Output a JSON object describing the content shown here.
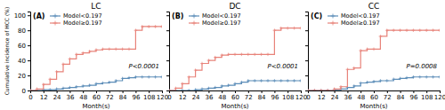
{
  "chart_data": [
    {
      "type": "step",
      "title": "LC",
      "annotations": [
        "(A)",
        "P<0.0001"
      ],
      "xlabel": "Month(s)",
      "ylabel": "Cumulative incidence of HCC (%)",
      "x": [
        0,
        6,
        12,
        18,
        24,
        30,
        36,
        42,
        48,
        54,
        60,
        66,
        72,
        78,
        84,
        90,
        96,
        102,
        108,
        114,
        120
      ],
      "series": [
        {
          "name": "Model<0.197",
          "color": "#5B8DB8",
          "marker": "plus",
          "values": [
            0,
            0,
            1,
            1,
            2,
            3,
            4,
            5,
            6,
            7,
            9,
            10,
            11,
            13,
            16,
            17,
            18,
            18,
            18,
            18,
            18
          ]
        },
        {
          "name": "Model≥0.197",
          "color": "#E8837A",
          "marker": "plus",
          "values": [
            0,
            2,
            8,
            15,
            25,
            35,
            42,
            48,
            50,
            52,
            54,
            55,
            55,
            55,
            55,
            55,
            80,
            85,
            85,
            85,
            85
          ]
        }
      ],
      "xlim": [
        0,
        120
      ],
      "ylim": [
        0,
        105
      ],
      "xticks": [
        0,
        12,
        24,
        36,
        48,
        60,
        72,
        84,
        96,
        108,
        120
      ],
      "yticks": [
        0,
        20,
        40,
        60,
        80,
        100
      ],
      "legend": "upper left"
    },
    {
      "type": "step",
      "title": "DC",
      "annotations": [
        "(B)",
        "P<0.0001"
      ],
      "xlabel": "Month(s)",
      "x": [
        0,
        6,
        12,
        18,
        24,
        30,
        36,
        42,
        48,
        54,
        60,
        66,
        72,
        78,
        84,
        90,
        96,
        102,
        108,
        114,
        120
      ],
      "series": [
        {
          "name": "Model<0.197",
          "color": "#5B8DB8",
          "marker": "plus",
          "values": [
            0,
            0,
            0,
            0,
            1,
            2,
            3,
            4,
            6,
            7,
            9,
            11,
            13,
            13,
            13,
            13,
            13,
            13,
            13,
            13,
            13
          ]
        },
        {
          "name": "Model≥0.197",
          "color": "#E8837A",
          "marker": "plus",
          "values": [
            0,
            3,
            9,
            18,
            27,
            36,
            40,
            44,
            47,
            48,
            48,
            48,
            48,
            48,
            48,
            48,
            80,
            83,
            83,
            83,
            83
          ]
        }
      ],
      "xlim": [
        0,
        120
      ],
      "ylim": [
        0,
        105
      ],
      "xticks": [
        0,
        12,
        24,
        36,
        48,
        60,
        72,
        84,
        96,
        108,
        120
      ],
      "yticks": [
        0,
        20,
        40,
        60,
        80,
        100
      ],
      "tick_labels": "x",
      "legend": "upper left"
    },
    {
      "type": "step",
      "title": "CC",
      "annotations": [
        "(C)",
        "P=0.0008"
      ],
      "xlabel": "Month(s)",
      "x": [
        0,
        6,
        12,
        18,
        24,
        30,
        36,
        42,
        48,
        54,
        60,
        66,
        72,
        78,
        84,
        90,
        96,
        102,
        108,
        114,
        120
      ],
      "series": [
        {
          "name": "Model<0.197",
          "color": "#5B8DB8",
          "marker": "plus",
          "values": [
            0,
            0,
            0,
            0,
            1,
            2,
            4,
            6,
            10,
            11,
            12,
            13,
            13,
            15,
            16,
            17,
            18,
            18,
            18,
            18,
            18
          ]
        },
        {
          "name": "Model≥0.197",
          "color": "#E8837A",
          "marker": "plus",
          "values": [
            0,
            0,
            0,
            0,
            2,
            5,
            28,
            30,
            53,
            55,
            55,
            72,
            80,
            80,
            80,
            80,
            80,
            80,
            80,
            80,
            80
          ]
        }
      ],
      "xlim": [
        0,
        120
      ],
      "ylim": [
        0,
        105
      ],
      "xticks": [
        0,
        12,
        24,
        36,
        48,
        60,
        72,
        84,
        96,
        108,
        120
      ],
      "yticks": [
        0,
        20,
        40,
        60,
        80,
        100
      ],
      "tick_labels": "x",
      "legend": "upper left"
    }
  ]
}
